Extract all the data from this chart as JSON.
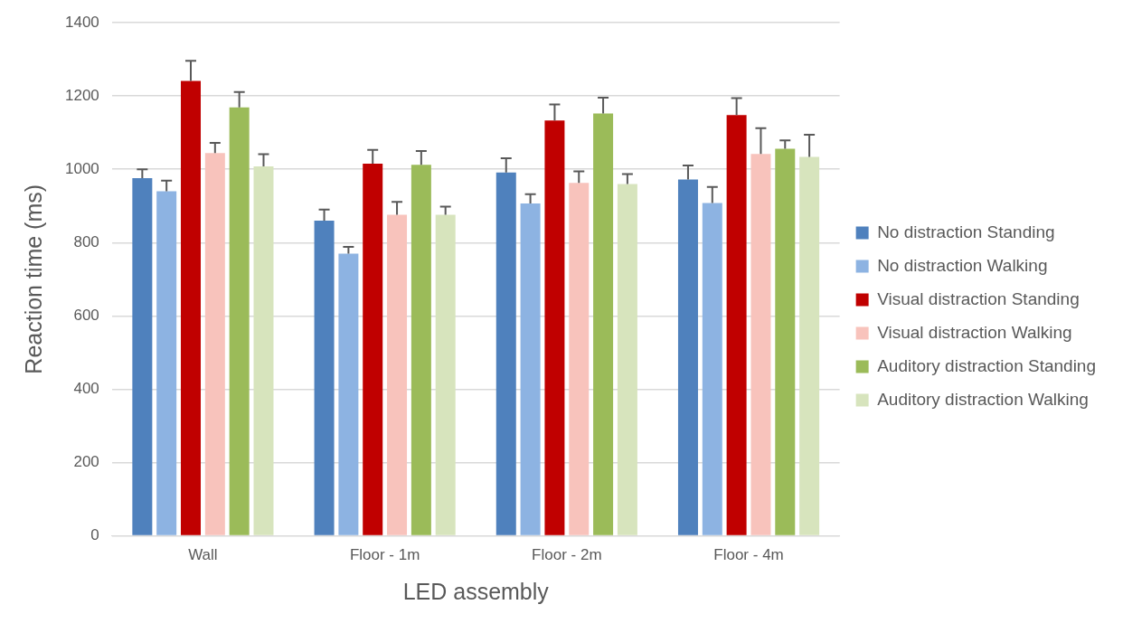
{
  "chart_data": {
    "type": "bar",
    "xlabel": "LED assembly",
    "ylabel": "Reaction time (ms)",
    "categories": [
      "Wall",
      "Floor - 1m",
      "Floor - 2m",
      "Floor - 4m"
    ],
    "series": [
      {
        "name": "No distraction Standing",
        "color": "#4f81bd",
        "values": [
          976,
          860,
          991,
          972
        ],
        "errors": [
          [
            976,
            1000
          ],
          [
            860,
            890
          ],
          [
            991,
            1030
          ],
          [
            972,
            1010
          ]
        ]
      },
      {
        "name": "No distraction Walking",
        "color": "#8db3e2",
        "values": [
          940,
          770,
          907,
          908
        ],
        "errors": [
          [
            940,
            969
          ],
          [
            770,
            788
          ],
          [
            907,
            932
          ],
          [
            908,
            952
          ]
        ]
      },
      {
        "name": "Visual distraction Standing",
        "color": "#c00000",
        "values": [
          1241,
          1015,
          1133,
          1148
        ],
        "errors": [
          [
            1241,
            1296
          ],
          [
            1015,
            1053
          ],
          [
            1133,
            1177
          ],
          [
            1148,
            1194
          ]
        ]
      },
      {
        "name": "Visual distraction Walking",
        "color": "#f8c3bc",
        "values": [
          1044,
          876,
          963,
          1042
        ],
        "errors": [
          [
            1044,
            1072
          ],
          [
            876,
            911
          ],
          [
            963,
            994
          ],
          [
            1042,
            1112
          ]
        ]
      },
      {
        "name": "Auditory distraction Standing",
        "color": "#9bbb59",
        "values": [
          1169,
          1012,
          1152,
          1056
        ],
        "errors": [
          [
            1169,
            1211
          ],
          [
            1012,
            1050
          ],
          [
            1152,
            1195
          ],
          [
            1056,
            1079
          ]
        ]
      },
      {
        "name": "Auditory distraction Walking",
        "color": "#d7e4bd",
        "values": [
          1008,
          876,
          960,
          1034
        ],
        "errors": [
          [
            1008,
            1041
          ],
          [
            876,
            898
          ],
          [
            960,
            987
          ],
          [
            1034,
            1094
          ]
        ]
      }
    ],
    "ylim": [
      0,
      1400
    ],
    "yticks": [
      0,
      200,
      400,
      600,
      800,
      1000,
      1200,
      1400
    ],
    "grid": "y",
    "legend": "right"
  }
}
